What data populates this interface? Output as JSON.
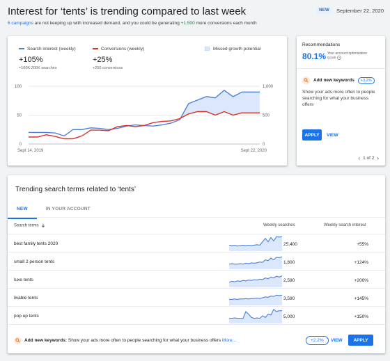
{
  "header": {
    "title": "Interest for ‘tents’ is trending compared to last week",
    "new_badge": "NEW",
    "date": "September 22, 2020",
    "subtitle_link": "6 campaigns",
    "subtitle_mid": " are not keeping up with increased demand, and you could be generating ",
    "subtitle_conversions": "+1,500",
    "subtitle_end": " more conversions each month"
  },
  "colors": {
    "search_interest": "#4d7fd8",
    "conversions": "#d93025",
    "missed_growth": "#dbe7fb",
    "accent": "#1a73e8"
  },
  "legend": {
    "search": {
      "label": "Search interest (weekly)",
      "value": "+105%",
      "sub": "+100K-200K searches"
    },
    "conversions": {
      "label": "Conversions (weekly)",
      "value": "+25%",
      "sub": "+250 conversions"
    },
    "missed": {
      "label": "Missed growth potential"
    }
  },
  "chart_data": {
    "type": "line",
    "x_start_label": "Sept 14, 2019",
    "x_end_label": "Sept 22, 2020",
    "y_left_ticks": [
      "100",
      "50",
      "0"
    ],
    "y_right_ticks": [
      "1,000",
      "500",
      "0"
    ],
    "ylim_left": [
      0,
      100
    ],
    "ylim_right": [
      0,
      1000
    ],
    "grid": true,
    "series": [
      {
        "name": "Search interest (weekly)",
        "axis": "left",
        "values": [
          20,
          20,
          20,
          19,
          14,
          25,
          25,
          28,
          27,
          25,
          27,
          31,
          33,
          32,
          31,
          33,
          36,
          42,
          70,
          76,
          82,
          80,
          93,
          82,
          90,
          90,
          90
        ]
      },
      {
        "name": "Conversions (weekly)",
        "axis": "right",
        "values": [
          120,
          120,
          160,
          130,
          90,
          90,
          140,
          240,
          240,
          230,
          300,
          320,
          300,
          320,
          370,
          390,
          400,
          440,
          520,
          560,
          560,
          500,
          560,
          500,
          540,
          540,
          540
        ]
      }
    ]
  },
  "recommendations": {
    "title": "Recommendations",
    "score": "80.1%",
    "score_label": "Your account optimization score",
    "keyword_title": "Add new keywords",
    "keyword_pill": "+3.2%",
    "description": "Show your ads more often to people searching for what your business offers",
    "apply_label": "APPLY",
    "view_label": "VIEW",
    "pager": "1 of 2"
  },
  "terms": {
    "title": "Trending search terms related to ‘tents’",
    "tabs": [
      "NEW",
      "IN YOUR ACCOUNT"
    ],
    "columns": {
      "term": "Search terms",
      "searches": "Weekly searches",
      "interest": "Weekly search interest"
    },
    "rows": [
      {
        "term": "best family tents 2020",
        "searches": "25,400",
        "interest": "+55%",
        "spark": [
          14,
          13,
          14,
          12,
          13,
          14,
          13,
          14,
          13,
          14,
          15,
          14,
          22,
          30,
          22,
          32,
          24,
          34,
          33,
          34
        ]
      },
      {
        "term": "small 2 person tents",
        "searches": "1,800",
        "interest": "+124%",
        "spark": [
          12,
          13,
          12,
          12,
          13,
          12,
          14,
          13,
          15,
          14,
          15,
          17,
          16,
          22,
          20,
          26,
          22,
          28,
          27,
          29
        ]
      },
      {
        "term": "luxe tents",
        "searches": "2,590",
        "interest": "+200%",
        "spark": [
          12,
          14,
          13,
          15,
          14,
          16,
          15,
          17,
          16,
          18,
          17,
          19,
          18,
          22,
          20,
          24,
          22,
          26,
          24,
          27
        ]
      },
      {
        "term": "livable tents",
        "searches": "3,590",
        "interest": "+145%",
        "spark": [
          14,
          14,
          15,
          14,
          15,
          15,
          16,
          15,
          16,
          16,
          17,
          16,
          18,
          20,
          19,
          22,
          21,
          24,
          23,
          24
        ]
      },
      {
        "term": "pop up tents",
        "searches": "5,000",
        "interest": "+150%",
        "spark": [
          12,
          12,
          13,
          12,
          12,
          12,
          28,
          22,
          14,
          12,
          13,
          12,
          18,
          14,
          22,
          20,
          33,
          28,
          30,
          30
        ]
      }
    ],
    "footer": {
      "bold": "Add new keywords:",
      "text": " Show your ads more often to people searching for what your business offers ",
      "more": "More...",
      "pill": "+2.2%",
      "view_label": "VIEW",
      "apply_label": "APPLY"
    }
  }
}
